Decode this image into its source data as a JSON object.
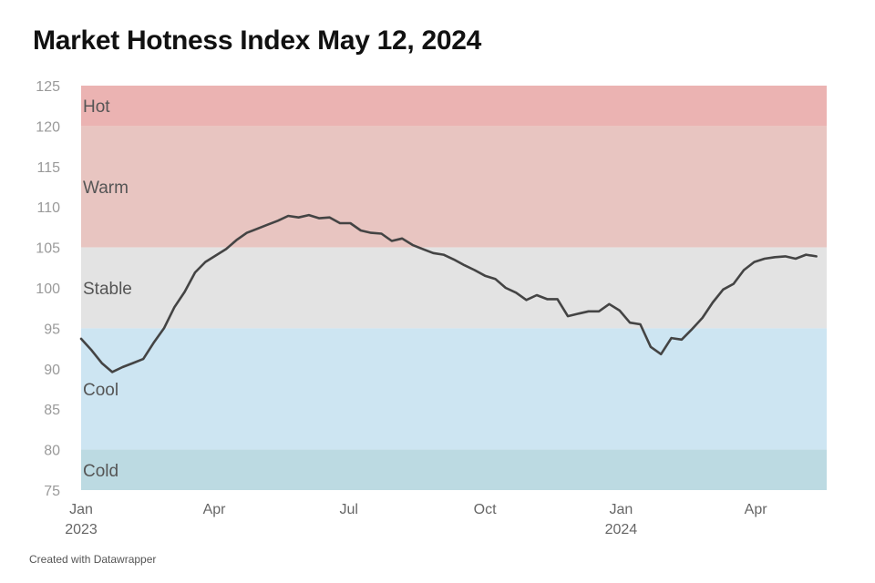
{
  "chart_data": {
    "type": "line",
    "title": "Market Hotness Index May 12, 2024",
    "footer": "Created with Datawrapper",
    "ylim": [
      75,
      125
    ],
    "yticks": [
      75,
      80,
      85,
      90,
      95,
      100,
      105,
      110,
      115,
      120,
      125
    ],
    "xlim": [
      "2023-01-01",
      "2024-05-19"
    ],
    "xticks": [
      {
        "date": "2023-01-01",
        "label": "Jan",
        "sublabel": "2023"
      },
      {
        "date": "2023-04-01",
        "label": "Apr",
        "sublabel": ""
      },
      {
        "date": "2023-07-01",
        "label": "Jul",
        "sublabel": ""
      },
      {
        "date": "2023-10-01",
        "label": "Oct",
        "sublabel": ""
      },
      {
        "date": "2024-01-01",
        "label": "Jan",
        "sublabel": "2024"
      },
      {
        "date": "2024-04-01",
        "label": "Apr",
        "sublabel": ""
      }
    ],
    "bands": [
      {
        "label": "Hot",
        "from": 120,
        "to": 125,
        "color": "#ebb3b2"
      },
      {
        "label": "Warm",
        "from": 105,
        "to": 120,
        "color": "#e8c5c1"
      },
      {
        "label": "Stable",
        "from": 95,
        "to": 105,
        "color": "#e3e3e3"
      },
      {
        "label": "Cool",
        "from": 80,
        "to": 95,
        "color": "#cde5f2"
      },
      {
        "label": "Cold",
        "from": 75,
        "to": 80,
        "color": "#bcdae2"
      }
    ],
    "line_color": "#444444",
    "series": [
      {
        "x": [
          "2023-01-01",
          "2023-01-08",
          "2023-01-15",
          "2023-01-22",
          "2023-01-29",
          "2023-02-05",
          "2023-02-12",
          "2023-02-19",
          "2023-02-26",
          "2023-03-05",
          "2023-03-12",
          "2023-03-19",
          "2023-03-26",
          "2023-04-02",
          "2023-04-09",
          "2023-04-16",
          "2023-04-23",
          "2023-04-30",
          "2023-05-07",
          "2023-05-14",
          "2023-05-21",
          "2023-05-28",
          "2023-06-04",
          "2023-06-11",
          "2023-06-18",
          "2023-06-25",
          "2023-07-02",
          "2023-07-09",
          "2023-07-16",
          "2023-07-23",
          "2023-07-30",
          "2023-08-06",
          "2023-08-13",
          "2023-08-20",
          "2023-08-27",
          "2023-09-03",
          "2023-09-10",
          "2023-09-17",
          "2023-09-24",
          "2023-10-01",
          "2023-10-08",
          "2023-10-15",
          "2023-10-22",
          "2023-10-29",
          "2023-11-05",
          "2023-11-12",
          "2023-11-19",
          "2023-11-26",
          "2023-12-03",
          "2023-12-10",
          "2023-12-17",
          "2023-12-24",
          "2023-12-31",
          "2024-01-07",
          "2024-01-14",
          "2024-01-21",
          "2024-01-28",
          "2024-02-04",
          "2024-02-11",
          "2024-02-18",
          "2024-02-25",
          "2024-03-03",
          "2024-03-10",
          "2024-03-17",
          "2024-03-24",
          "2024-03-31",
          "2024-04-07",
          "2024-04-14",
          "2024-04-21",
          "2024-04-28",
          "2024-05-05",
          "2024-05-12"
        ],
        "values": [
          93.7,
          92.3,
          90.7,
          89.6,
          90.2,
          90.7,
          91.2,
          93.2,
          95.0,
          97.6,
          99.5,
          101.9,
          103.2,
          104.0,
          104.8,
          105.9,
          106.8,
          107.3,
          107.8,
          108.3,
          108.9,
          108.7,
          109.0,
          108.6,
          108.7,
          108.0,
          108.0,
          107.1,
          106.8,
          106.7,
          105.8,
          106.1,
          105.3,
          104.8,
          104.3,
          104.1,
          103.5,
          102.8,
          102.2,
          101.5,
          101.1,
          100.0,
          99.4,
          98.5,
          99.1,
          98.6,
          98.6,
          96.5,
          96.8,
          97.1,
          97.1,
          98.0,
          97.2,
          95.7,
          95.5,
          92.7,
          91.8,
          93.8,
          93.6,
          94.9,
          96.3,
          98.2,
          99.8,
          100.5,
          102.2,
          103.2,
          103.6,
          103.8,
          103.9,
          103.6,
          104.1,
          103.9
        ]
      }
    ]
  }
}
